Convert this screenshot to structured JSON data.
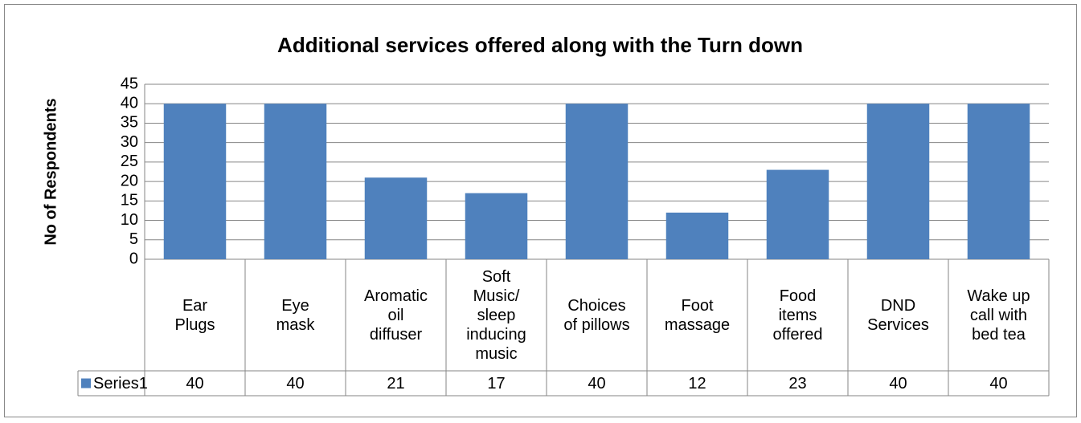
{
  "chart_data": {
    "type": "bar",
    "title": "Additional services offered along with the Turn down",
    "y_label": "No of Respondents",
    "categories": [
      "Ear\nPlugs",
      "Eye\nmask",
      "Aromatic\noil\ndiffuser",
      "Soft\nMusic/\nsleep\ninducing\nmusic",
      "Choices\nof pillows",
      "Foot\nmassage",
      "Food\nitems\noffered",
      "DND\nServices",
      "Wake up\ncall with\nbed tea"
    ],
    "series": [
      {
        "name": "Series1",
        "color": "#4f81bd",
        "values": [
          40,
          40,
          21,
          17,
          40,
          12,
          23,
          40,
          40
        ]
      }
    ],
    "ylim": [
      0,
      45
    ],
    "yticks": [
      0,
      5,
      10,
      15,
      20,
      25,
      30,
      35,
      40,
      45
    ],
    "grid": true
  }
}
